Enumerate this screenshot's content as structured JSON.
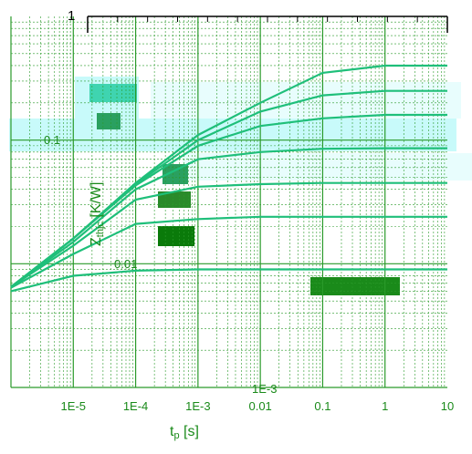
{
  "chart_data": {
    "type": "line",
    "title": "",
    "xlabel": "tp [s]",
    "xlabel_main": "t",
    "xlabel_sub": "p",
    "xlabel_unit": " [s]",
    "ylabel": "Zthjc [K/W]",
    "ylabel_main": "Z",
    "ylabel_sub": "thjc",
    "ylabel_unit": " [K/W]",
    "x_scale": "log",
    "y_scale": "log",
    "xlim": [
      1e-06,
      10
    ],
    "ylim": [
      0.001,
      1
    ],
    "grid": true,
    "y_ticks": [
      {
        "value": 1,
        "label": "1"
      },
      {
        "value": 0.1,
        "label": "0.1"
      },
      {
        "value": 0.01,
        "label": "0.01"
      },
      {
        "value": 0.001,
        "label": "1E-3"
      }
    ],
    "x_ticks": [
      {
        "value": 1e-05,
        "label": "1E-5"
      },
      {
        "value": 0.0001,
        "label": "1E-4"
      },
      {
        "value": 0.001,
        "label": "1E-3"
      },
      {
        "value": 0.01,
        "label": "0.01"
      },
      {
        "value": 0.1,
        "label": "0.1"
      },
      {
        "value": 1,
        "label": "1"
      },
      {
        "value": 10,
        "label": "10"
      }
    ],
    "series": [
      {
        "x": [
          1e-06,
          1e-05,
          0.0001,
          0.001,
          0.01,
          0.1,
          1,
          10
        ],
        "y": [
          0.0065,
          0.016,
          0.045,
          0.11,
          0.2,
          0.35,
          0.4,
          0.4
        ]
      },
      {
        "x": [
          1e-06,
          1e-05,
          0.0001,
          0.001,
          0.01,
          0.1,
          1,
          10
        ],
        "y": [
          0.0065,
          0.016,
          0.044,
          0.1,
          0.17,
          0.23,
          0.25,
          0.25
        ]
      },
      {
        "x": [
          1e-06,
          1e-05,
          0.0001,
          0.001,
          0.01,
          0.1,
          1,
          10
        ],
        "y": [
          0.0065,
          0.016,
          0.043,
          0.09,
          0.13,
          0.15,
          0.16,
          0.16
        ]
      },
      {
        "x": [
          1e-06,
          1e-05,
          0.0001,
          0.001,
          0.01,
          0.1,
          1,
          10
        ],
        "y": [
          0.0065,
          0.015,
          0.04,
          0.07,
          0.08,
          0.085,
          0.086,
          0.086
        ]
      },
      {
        "x": [
          1e-06,
          1e-05,
          0.0001,
          0.001,
          0.01,
          0.1,
          1,
          10
        ],
        "y": [
          0.0065,
          0.014,
          0.033,
          0.042,
          0.044,
          0.045,
          0.045,
          0.045
        ]
      },
      {
        "x": [
          1e-06,
          1e-05,
          0.0001,
          0.001,
          0.01,
          0.1,
          1,
          10
        ],
        "y": [
          0.0064,
          0.012,
          0.021,
          0.023,
          0.024,
          0.024,
          0.024,
          0.024
        ]
      },
      {
        "x": [
          1e-06,
          1e-05,
          0.0001,
          0.001,
          0.01,
          0.1,
          1,
          10
        ],
        "y": [
          0.006,
          0.008,
          0.0088,
          0.009,
          0.009,
          0.009,
          0.009,
          0.009
        ]
      }
    ],
    "colors": {
      "curve": "#1fbf7a",
      "grid": "#2a9a2a",
      "axis": "#000000",
      "label": "#1a8a1a",
      "band": "#c8fafa",
      "band_dark": "#2aa06a"
    }
  }
}
